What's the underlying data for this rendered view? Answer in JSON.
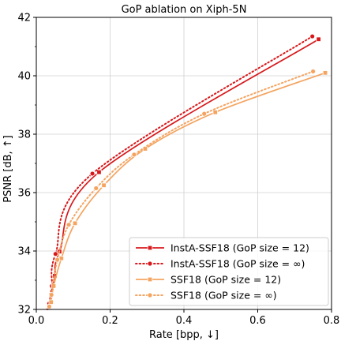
{
  "chart_data": {
    "type": "line",
    "title": "GoP ablation on Xiph-5N",
    "xlabel": "Rate [bpp, ↓]",
    "ylabel": "PSNR [dB, ↑]",
    "xlim": [
      0.0,
      0.8
    ],
    "ylim": [
      32,
      42
    ],
    "xticks": [
      "0.0",
      "0.2",
      "0.4",
      "0.6",
      "0.8"
    ],
    "yticks": [
      "32",
      "34",
      "36",
      "38",
      "40",
      "42"
    ],
    "grid": true,
    "legend_position": "lower-right",
    "series": [
      {
        "name": "InstA-SSF18 (GoP size = 12)",
        "color": "#d7191c",
        "line_style": "solid",
        "marker": "square",
        "points": [
          [
            0.765,
            41.25
          ],
          [
            0.17,
            36.7
          ],
          [
            0.063,
            33.98
          ],
          [
            0.05,
            33.15
          ],
          [
            0.04,
            32.5
          ]
        ],
        "curve_start": [
          0.035,
          32.0
        ]
      },
      {
        "name": "InstA-SSF18 (GoP size = ∞)",
        "color": "#d7191c",
        "line_style": "dotted",
        "marker": "circle",
        "points": [
          [
            0.748,
            41.35
          ],
          [
            0.152,
            36.65
          ],
          [
            0.052,
            33.9
          ],
          [
            0.042,
            32.8
          ],
          [
            0.035,
            32.2
          ]
        ],
        "curve_start": [
          0.03,
          32.0
        ]
      },
      {
        "name": "SSF18 (GoP size = 12)",
        "color": "#f4a460",
        "line_style": "solid",
        "marker": "square",
        "points": [
          [
            0.783,
            40.1
          ],
          [
            0.485,
            38.75
          ],
          [
            0.295,
            37.5
          ],
          [
            0.183,
            36.25
          ],
          [
            0.105,
            34.95
          ],
          [
            0.068,
            33.75
          ],
          [
            0.047,
            32.8
          ],
          [
            0.04,
            32.25
          ]
        ],
        "curve_start": [
          0.038,
          32.0
        ]
      },
      {
        "name": "SSF18 (GoP size = ∞)",
        "color": "#f4a460",
        "line_style": "dotted",
        "marker": "circle",
        "points": [
          [
            0.75,
            40.15
          ],
          [
            0.455,
            38.7
          ],
          [
            0.265,
            37.3
          ],
          [
            0.162,
            36.15
          ],
          [
            0.088,
            34.9
          ],
          [
            0.057,
            33.7
          ],
          [
            0.041,
            32.5
          ],
          [
            0.035,
            32.1
          ]
        ],
        "curve_start": [
          0.032,
          32.0
        ]
      }
    ]
  }
}
